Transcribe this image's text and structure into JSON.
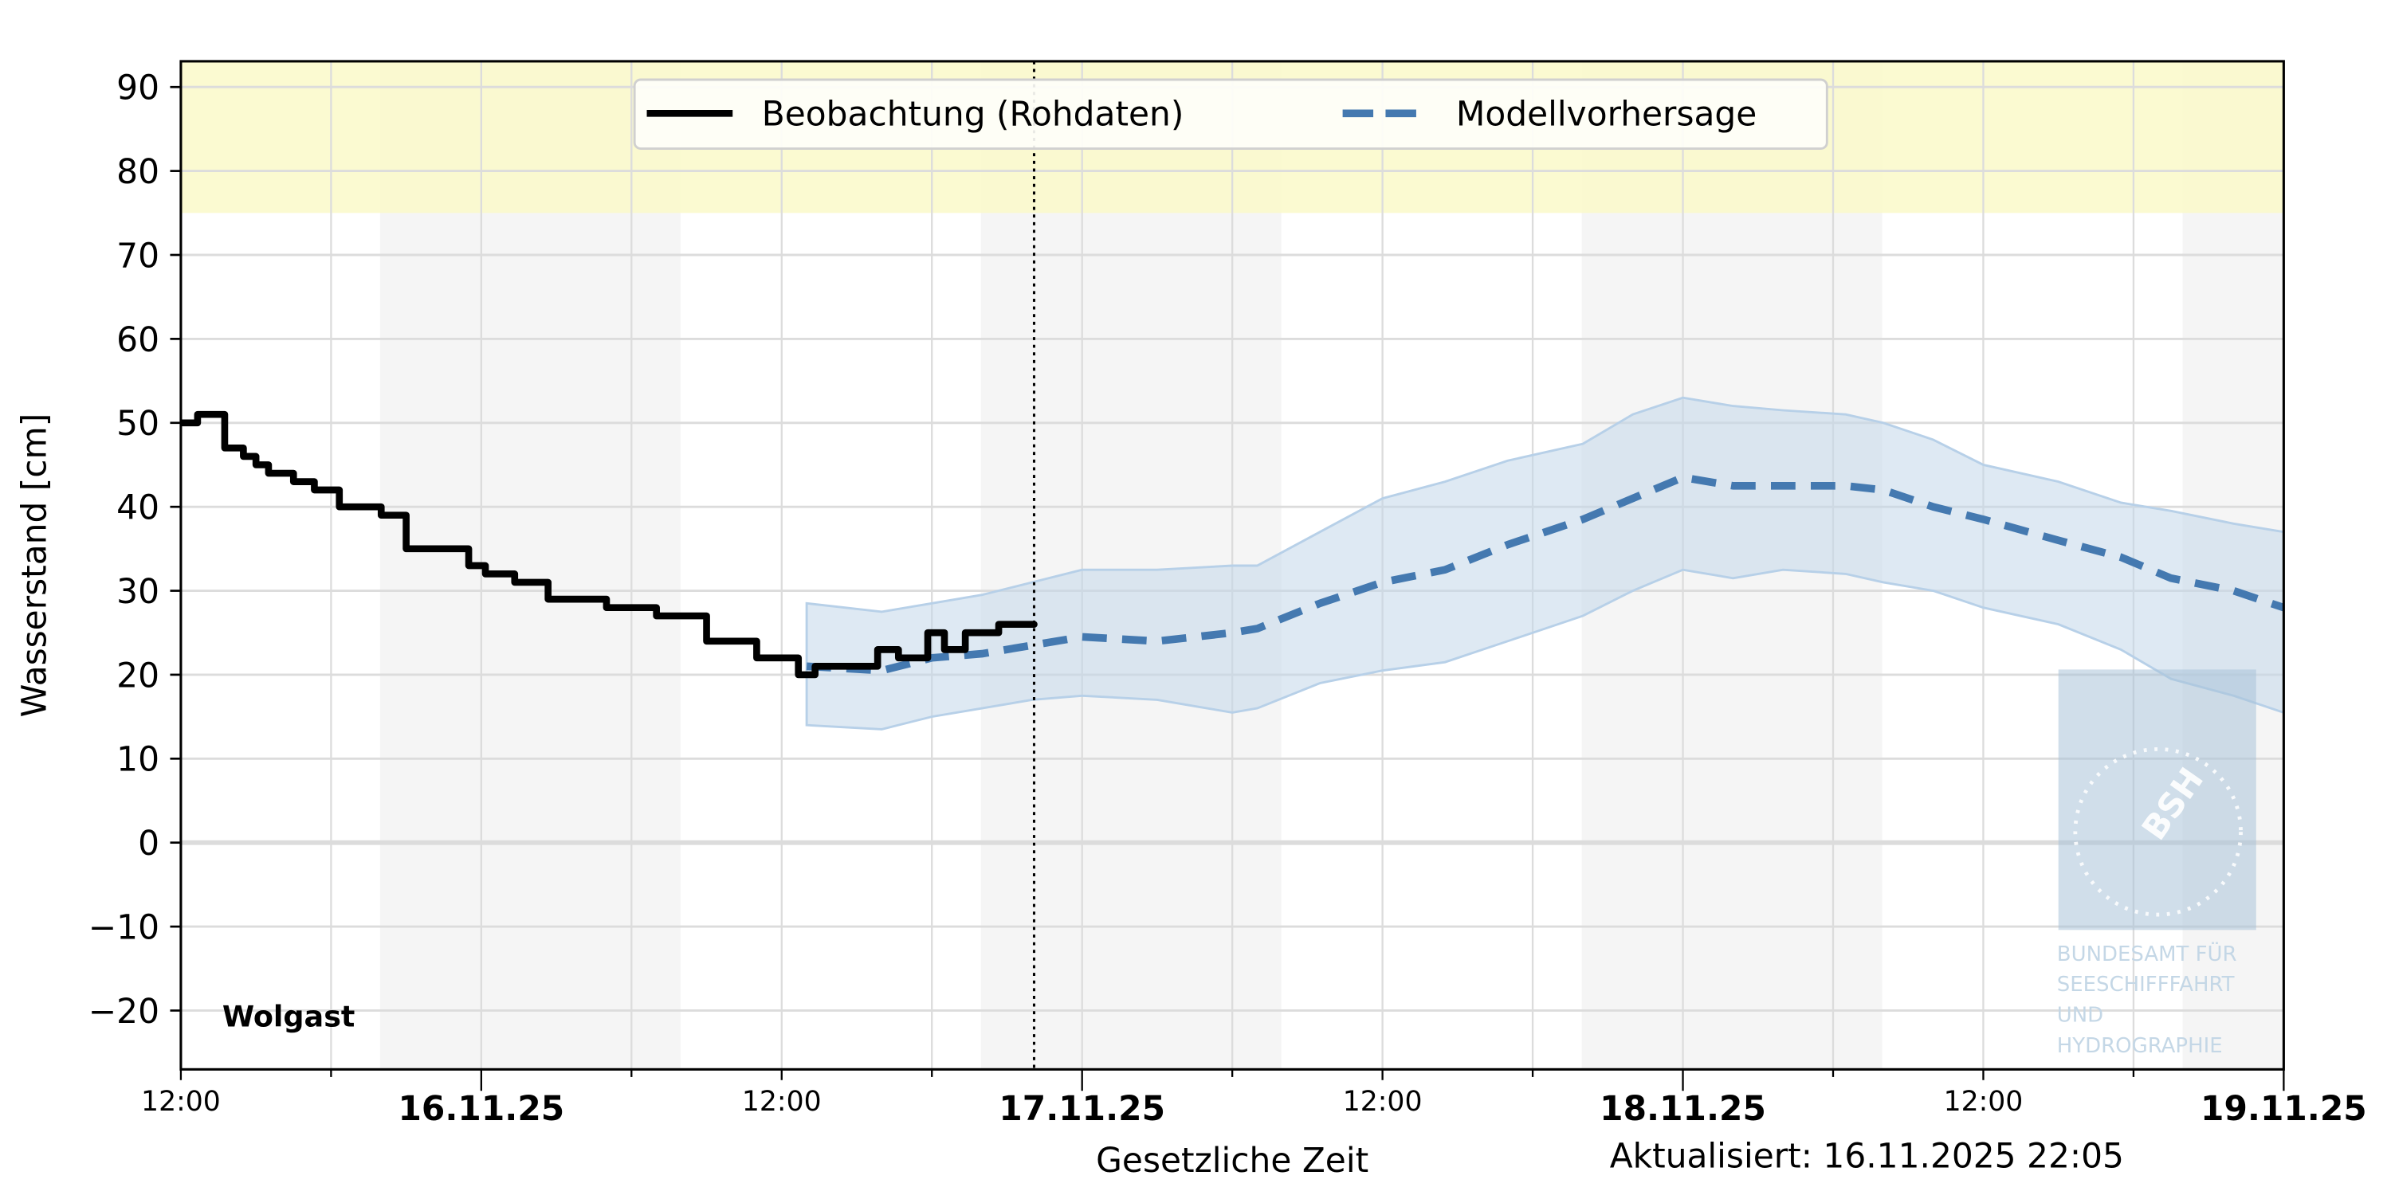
{
  "chart_data": {
    "type": "line",
    "title": "",
    "station": "Wolgast",
    "xlabel": "Gesetzliche Zeit",
    "ylabel": "Wasserstand [cm]",
    "updated": "Aktualisiert: 16.11.2025 22:05",
    "ylim": [
      -27,
      93
    ],
    "yticks": [
      90,
      80,
      70,
      60,
      50,
      40,
      30,
      20,
      10,
      0,
      -10,
      -20
    ],
    "ytick_labels": [
      "90",
      "80",
      "70",
      "60",
      "50",
      "40",
      "30",
      "20",
      "10",
      "0",
      "−10",
      "−20"
    ],
    "xticks": [
      {
        "label": "12:00",
        "bold": false
      },
      {
        "label": "16.11.25",
        "bold": true
      },
      {
        "label": "12:00",
        "bold": false
      },
      {
        "label": "17.11.25",
        "bold": true
      },
      {
        "label": "12:00",
        "bold": false
      },
      {
        "label": "18.11.25",
        "bold": true
      },
      {
        "label": "12:00",
        "bold": false
      },
      {
        "label": "19.11.25",
        "bold": true
      }
    ],
    "grid": true,
    "highlight_band": {
      "from": 75,
      "to": 93,
      "color": "#fbf9cc"
    },
    "now_marker": "16.11.2025 22:05",
    "legend": [
      {
        "label": "Beobachtung (Rohdaten)",
        "style": "solid",
        "color": "#000000"
      },
      {
        "label": "Modellvorhersage",
        "style": "dashed",
        "color": "#4479b0"
      }
    ],
    "series": [
      {
        "name": "Beobachtung (Rohdaten)",
        "steps": [
          {
            "t": "15.11 12:00",
            "v": 50
          },
          {
            "t": "15.11 12:40",
            "v": 51
          },
          {
            "t": "15.11 13:45",
            "v": 47
          },
          {
            "t": "15.11 14:30",
            "v": 46
          },
          {
            "t": "15.11 15:00",
            "v": 45
          },
          {
            "t": "15.11 15:30",
            "v": 44
          },
          {
            "t": "15.11 16:30",
            "v": 43
          },
          {
            "t": "15.11 17:20",
            "v": 42
          },
          {
            "t": "15.11 18:20",
            "v": 40
          },
          {
            "t": "15.11 20:00",
            "v": 39
          },
          {
            "t": "15.11 21:00",
            "v": 35
          },
          {
            "t": "15.11 23:30",
            "v": 33
          },
          {
            "t": "16.11 00:10",
            "v": 32
          },
          {
            "t": "16.11 01:20",
            "v": 31
          },
          {
            "t": "16.11 02:40",
            "v": 29
          },
          {
            "t": "16.11 05:00",
            "v": 28
          },
          {
            "t": "16.11 07:00",
            "v": 27
          },
          {
            "t": "16.11 09:00",
            "v": 24
          },
          {
            "t": "16.11 11:00",
            "v": 22
          },
          {
            "t": "16.11 12:40",
            "v": 20
          },
          {
            "t": "16.11 13:20",
            "v": 21
          },
          {
            "t": "16.11 15:50",
            "v": 23
          },
          {
            "t": "16.11 16:40",
            "v": 22
          },
          {
            "t": "16.11 17:50",
            "v": 25
          },
          {
            "t": "16.11 18:30",
            "v": 23
          },
          {
            "t": "16.11 19:20",
            "v": 25
          },
          {
            "t": "16.11 20:40",
            "v": 26
          },
          {
            "t": "16.11 22:05",
            "v": 26
          }
        ]
      },
      {
        "name": "Modellvorhersage",
        "x": [
          "16.11 13:00",
          "16.11 16:00",
          "16.11 18:00",
          "16.11 20:00",
          "16.11 22:00",
          "17.11 00:00",
          "17.11 03:00",
          "17.11 06:00",
          "17.11 07:00",
          "17.11 09:30",
          "17.11 12:00",
          "17.11 14:30",
          "17.11 17:00",
          "17.11 20:00",
          "17.11 22:00",
          "18.11 00:00",
          "18.11 02:00",
          "18.11 04:00",
          "18.11 06:30",
          "18.11 08:00",
          "18.11 10:00",
          "18.11 12:00",
          "18.11 15:00",
          "18.11 17:30",
          "18.11 19:30",
          "18.11 22:00",
          "19.11 00:00"
        ],
        "values": [
          21,
          20.5,
          22,
          22.5,
          23.5,
          24.5,
          24,
          25,
          25.5,
          28.5,
          31,
          32.5,
          35.5,
          38.5,
          41,
          43.5,
          42.5,
          42.5,
          42.5,
          42,
          40,
          38.5,
          36,
          34,
          31.5,
          30,
          28
        ],
        "band_upper": [
          28.5,
          27.5,
          28.5,
          29.5,
          31,
          32.5,
          32.5,
          33,
          33,
          37,
          41,
          43,
          45.5,
          47.5,
          51,
          53,
          52,
          51.5,
          51,
          50,
          48,
          45,
          43,
          40.5,
          39.5,
          38,
          37
        ],
        "band_lower": [
          14,
          13.5,
          15,
          16,
          17,
          17.5,
          17,
          15.5,
          16,
          19,
          20.5,
          21.5,
          24,
          27,
          30,
          32.5,
          31.5,
          32.5,
          32,
          31,
          30,
          28,
          26,
          23,
          19.5,
          17.5,
          15.5
        ]
      }
    ]
  },
  "watermark": {
    "logo_text": "BSH",
    "lines": [
      "BUNDESAMT FÜR",
      "SEESCHIFFFAHRT",
      "UND",
      "HYDROGRAPHIE"
    ]
  }
}
